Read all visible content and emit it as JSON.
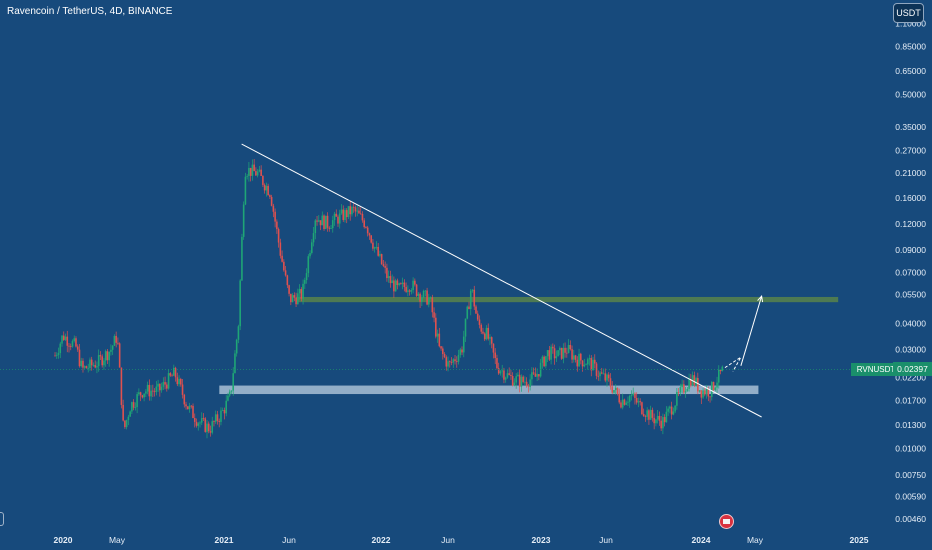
{
  "title": "Ravencoin / TetherUS, 4D, BINANCE",
  "unit_badge": "USDT",
  "price_label": "RVNUSDT",
  "price_value": "0.02397",
  "colors": {
    "background": "#174a7c",
    "up": "#1fa676",
    "down": "#e0514f",
    "resistance_zone": "#4e7a52",
    "support_zone": "#a9bfd6",
    "trendline": "#ffffff",
    "last_price": "#1a8f6b"
  },
  "icons": [
    "flag-icon"
  ],
  "chart_data": {
    "type": "candlestick",
    "title": "Ravencoin / TetherUS, 4D, BINANCE",
    "y_scale": "log",
    "y_ticks": [
      "1.10000",
      "0.85000",
      "0.65000",
      "0.50000",
      "0.35000",
      "0.27000",
      "0.21000",
      "0.16000",
      "0.12000",
      "0.09000",
      "0.07000",
      "0.05500",
      "0.04000",
      "0.03000",
      "0.02200",
      "0.01700",
      "0.01300",
      "0.01000",
      "0.00750",
      "0.00590",
      "0.00460"
    ],
    "x_ticks": [
      {
        "label": "2020",
        "major": true
      },
      {
        "label": "May",
        "major": false
      },
      {
        "label": "2021",
        "major": true
      },
      {
        "label": "Jun",
        "major": false
      },
      {
        "label": "2022",
        "major": true
      },
      {
        "label": "Jun",
        "major": false
      },
      {
        "label": "2023",
        "major": true
      },
      {
        "label": "Jun",
        "major": false
      },
      {
        "label": "2024",
        "major": true
      },
      {
        "label": "May",
        "major": false
      },
      {
        "label": "2025",
        "major": true
      }
    ],
    "last_price": 0.02397,
    "price_path": [
      {
        "t": 2019.95,
        "p": 0.028
      },
      {
        "t": 2020.0,
        "p": 0.035
      },
      {
        "t": 2020.08,
        "p": 0.031
      },
      {
        "t": 2020.12,
        "p": 0.024
      },
      {
        "t": 2020.22,
        "p": 0.026
      },
      {
        "t": 2020.3,
        "p": 0.03
      },
      {
        "t": 2020.34,
        "p": 0.035
      },
      {
        "t": 2020.38,
        "p": 0.012
      },
      {
        "t": 2020.42,
        "p": 0.016
      },
      {
        "t": 2020.5,
        "p": 0.019
      },
      {
        "t": 2020.6,
        "p": 0.019
      },
      {
        "t": 2020.7,
        "p": 0.023
      },
      {
        "t": 2020.78,
        "p": 0.016
      },
      {
        "t": 2020.85,
        "p": 0.0135
      },
      {
        "t": 2020.92,
        "p": 0.0125
      },
      {
        "t": 2021.0,
        "p": 0.015
      },
      {
        "t": 2021.05,
        "p": 0.018
      },
      {
        "t": 2021.1,
        "p": 0.04
      },
      {
        "t": 2021.14,
        "p": 0.22
      },
      {
        "t": 2021.22,
        "p": 0.21
      },
      {
        "t": 2021.3,
        "p": 0.17
      },
      {
        "t": 2021.36,
        "p": 0.09
      },
      {
        "t": 2021.42,
        "p": 0.052
      },
      {
        "t": 2021.5,
        "p": 0.055
      },
      {
        "t": 2021.58,
        "p": 0.13
      },
      {
        "t": 2021.66,
        "p": 0.12
      },
      {
        "t": 2021.74,
        "p": 0.13
      },
      {
        "t": 2021.82,
        "p": 0.14
      },
      {
        "t": 2021.9,
        "p": 0.12
      },
      {
        "t": 2021.96,
        "p": 0.09
      },
      {
        "t": 2022.04,
        "p": 0.065
      },
      {
        "t": 2022.1,
        "p": 0.058
      },
      {
        "t": 2022.18,
        "p": 0.062
      },
      {
        "t": 2022.24,
        "p": 0.055
      },
      {
        "t": 2022.3,
        "p": 0.052
      },
      {
        "t": 2022.36,
        "p": 0.03
      },
      {
        "t": 2022.42,
        "p": 0.025
      },
      {
        "t": 2022.5,
        "p": 0.03
      },
      {
        "t": 2022.56,
        "p": 0.06
      },
      {
        "t": 2022.6,
        "p": 0.04
      },
      {
        "t": 2022.66,
        "p": 0.035
      },
      {
        "t": 2022.72,
        "p": 0.025
      },
      {
        "t": 2022.8,
        "p": 0.022
      },
      {
        "t": 2022.88,
        "p": 0.021
      },
      {
        "t": 2022.96,
        "p": 0.022
      },
      {
        "t": 2023.04,
        "p": 0.029
      },
      {
        "t": 2023.1,
        "p": 0.028
      },
      {
        "t": 2023.16,
        "p": 0.03
      },
      {
        "t": 2023.22,
        "p": 0.027
      },
      {
        "t": 2023.3,
        "p": 0.026
      },
      {
        "t": 2023.36,
        "p": 0.023
      },
      {
        "t": 2023.42,
        "p": 0.021
      },
      {
        "t": 2023.5,
        "p": 0.017
      },
      {
        "t": 2023.56,
        "p": 0.018
      },
      {
        "t": 2023.62,
        "p": 0.016
      },
      {
        "t": 2023.7,
        "p": 0.014
      },
      {
        "t": 2023.76,
        "p": 0.0135
      },
      {
        "t": 2023.82,
        "p": 0.016
      },
      {
        "t": 2023.88,
        "p": 0.019
      },
      {
        "t": 2023.94,
        "p": 0.022
      },
      {
        "t": 2024.0,
        "p": 0.019
      },
      {
        "t": 2024.06,
        "p": 0.019
      },
      {
        "t": 2024.1,
        "p": 0.0215
      },
      {
        "t": 2024.14,
        "p": 0.024
      }
    ],
    "annotations": {
      "trendline": {
        "from": {
          "t": 2021.12,
          "p": 0.29
        },
        "to": {
          "t": 2024.38,
          "p": 0.0142
        }
      },
      "resistance_zone": {
        "from_t": 2021.46,
        "to_t": 2024.86,
        "low": 0.0505,
        "high": 0.0535
      },
      "support_zone": {
        "from_t": 2020.98,
        "to_t": 2024.36,
        "low": 0.0183,
        "high": 0.0201
      },
      "projection_dashed": [
        {
          "t": 2024.15,
          "p": 0.0245
        },
        {
          "t": 2024.25,
          "p": 0.0275
        },
        {
          "t": 2024.2,
          "p": 0.0235
        }
      ],
      "projection_arrow": {
        "from": {
          "t": 2024.25,
          "p": 0.025
        },
        "to": {
          "t": 2024.38,
          "p": 0.054
        }
      }
    },
    "grid": false,
    "legend": "none"
  }
}
